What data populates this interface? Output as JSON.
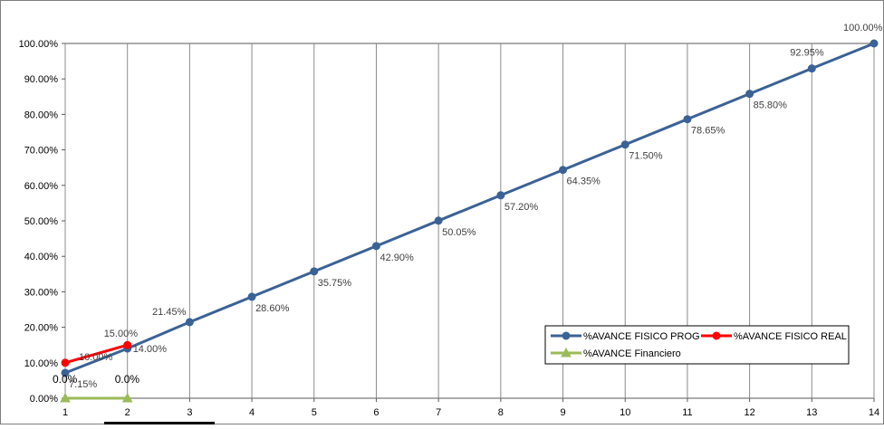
{
  "chart_data": {
    "type": "line",
    "title": "",
    "xlabel": "",
    "ylabel": "",
    "x": [
      1,
      2,
      3,
      4,
      5,
      6,
      7,
      8,
      9,
      10,
      11,
      12,
      13,
      14
    ],
    "x_tick_labels": [
      "1",
      "2",
      "3",
      "4",
      "5",
      "6",
      "7",
      "8",
      "9",
      "10",
      "11",
      "12",
      "13",
      "14"
    ],
    "y_tick_labels": [
      "0.00%",
      "10.00%",
      "20.00%",
      "30.00%",
      "40.00%",
      "50.00%",
      "60.00%",
      "70.00%",
      "80.00%",
      "90.00%",
      "100.00%"
    ],
    "ylim": [
      0,
      1
    ],
    "grid": "vertical",
    "legend_position": "bottom-right",
    "series": [
      {
        "name": "%AVANCE FISICO PROG",
        "color": "#3B6296",
        "marker": "circle",
        "x": [
          1,
          2,
          3,
          4,
          5,
          6,
          7,
          8,
          9,
          10,
          11,
          12,
          13,
          14
        ],
        "values": [
          0.0715,
          0.14,
          0.2145,
          0.286,
          0.3575,
          0.429,
          0.5005,
          0.572,
          0.6435,
          0.715,
          0.7865,
          0.858,
          0.9295,
          1.0
        ],
        "labels": [
          "7.15%",
          "14.00%",
          "21.45%",
          "28.60%",
          "35.75%",
          "42.90%",
          "50.05%",
          "57.20%",
          "64.35%",
          "71.50%",
          "78.65%",
          "85.80%",
          "92.95%",
          "100.00%"
        ]
      },
      {
        "name": "%AVANCE FISICO REAL",
        "color": "#FF0000",
        "marker": "circle",
        "x": [
          1,
          2
        ],
        "values": [
          0.1,
          0.15
        ],
        "labels": [
          "10.00%",
          "15.00%"
        ]
      },
      {
        "name": "%AVANCE Financiero",
        "color": "#9BBB59",
        "marker": "triangle",
        "x": [
          1,
          2
        ],
        "values": [
          0.0,
          0.0
        ],
        "labels": [
          "0.0%",
          "0.0%"
        ]
      }
    ]
  }
}
